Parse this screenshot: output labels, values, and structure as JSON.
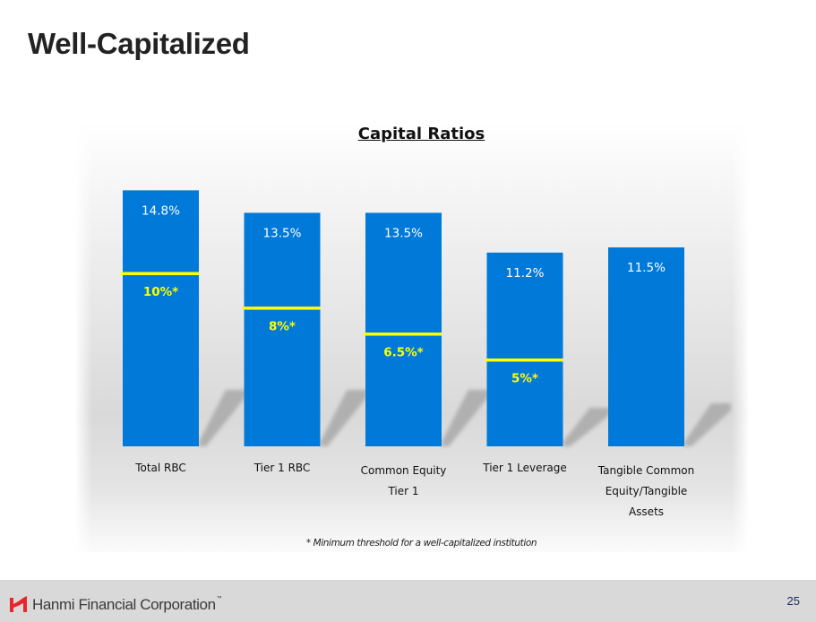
{
  "slide": {
    "title": "Well-Capitalized",
    "footnote": "* Minimum threshold for a well-capitalized institution",
    "page_number": "25"
  },
  "footer": {
    "company_name": "Hanmi Financial Corporation",
    "trademark": "™",
    "logo_icon": "hanmi-logo-icon",
    "logo_color": "#e8262d"
  },
  "colors": {
    "bar": "#0079d8",
    "threshold": "#ffff00",
    "value_label": "#ffffff",
    "threshold_label": "#ffff00",
    "shadow": "#a9a9a9"
  },
  "chart_data": {
    "type": "bar",
    "title": "Capital Ratios",
    "xlabel": "",
    "ylabel": "",
    "grid": false,
    "legend": "none",
    "ylim": [
      0,
      14.8
    ],
    "categories": [
      [
        "Total RBC"
      ],
      [
        "Tier 1 RBC"
      ],
      [
        "Common Equity",
        "Tier 1"
      ],
      [
        "Tier 1 Leverage"
      ],
      [
        "Tangible Common",
        "Equity/Tangible",
        "Assets"
      ]
    ],
    "series": [
      {
        "name": "Capital Ratio",
        "values": [
          14.8,
          13.5,
          13.5,
          11.2,
          11.5
        ],
        "labels": [
          "14.8%",
          "13.5%",
          "13.5%",
          "11.2%",
          "11.5%"
        ]
      },
      {
        "name": "Well-Capitalized Minimum",
        "values": [
          10,
          8,
          6.5,
          5,
          null
        ],
        "labels": [
          "10%*",
          "8%*",
          "6.5%*",
          "5%*",
          null
        ]
      }
    ]
  }
}
